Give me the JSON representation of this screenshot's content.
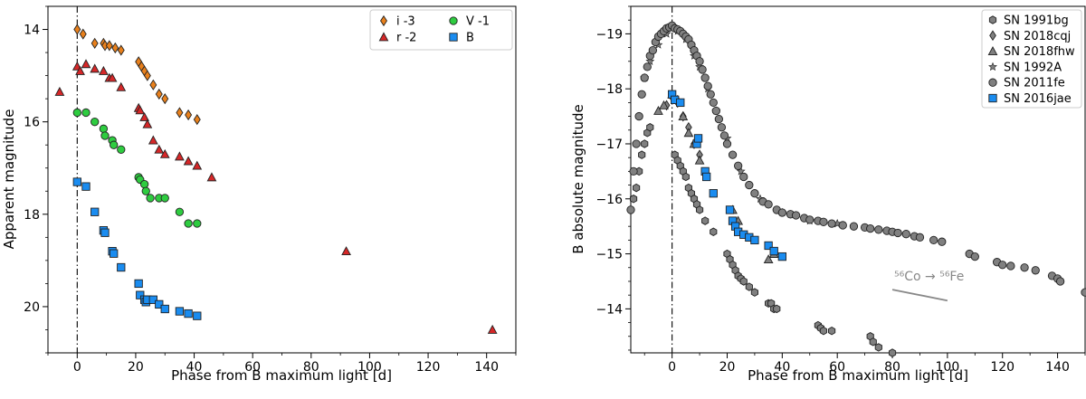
{
  "chart_data": [
    {
      "type": "scatter",
      "title": "",
      "xlabel": "Phase from B maximum light [d]",
      "ylabel": "Apparent magnitude",
      "xlim": [
        -10,
        150
      ],
      "ylim": [
        21.0,
        13.5
      ],
      "y_inverted": true,
      "grid": false,
      "legend_position": "top-right",
      "reference_line_x": 0,
      "x_ticks": [
        "0",
        "20",
        "40",
        "60",
        "80",
        "100",
        "120",
        "140"
      ],
      "x_tick_values": [
        0,
        20,
        40,
        60,
        80,
        100,
        120,
        140
      ],
      "y_ticks": [
        "14",
        "16",
        "18",
        "20"
      ],
      "y_tick_values": [
        14,
        16,
        18,
        20
      ],
      "series": [
        {
          "name": "i -3",
          "marker": "diamond",
          "color": "#e8801c",
          "x": [
            0,
            2,
            6,
            9,
            9.5,
            11,
            13,
            15,
            21,
            22,
            23,
            24,
            26,
            28,
            30,
            35,
            38,
            41
          ],
          "y": [
            14.0,
            14.1,
            14.3,
            14.3,
            14.35,
            14.35,
            14.4,
            14.45,
            14.7,
            14.8,
            14.9,
            15.0,
            15.2,
            15.4,
            15.5,
            15.8,
            15.85,
            15.95
          ]
        },
        {
          "name": "r -2",
          "marker": "triangle",
          "color": "#d62728",
          "x": [
            -6,
            0,
            1,
            3,
            6,
            9,
            11,
            12,
            15,
            21,
            21.5,
            23,
            24,
            26,
            28,
            30,
            35,
            38,
            41,
            46,
            92,
            142
          ],
          "y": [
            15.35,
            14.8,
            14.9,
            14.75,
            14.85,
            14.9,
            15.05,
            15.05,
            15.25,
            15.7,
            15.75,
            15.9,
            16.05,
            16.4,
            16.6,
            16.7,
            16.75,
            16.85,
            16.95,
            17.2,
            18.8,
            20.5
          ]
        },
        {
          "name": "V -1",
          "marker": "circle",
          "color": "#2ecc40",
          "x": [
            0,
            3,
            6,
            9,
            9.5,
            12,
            12.5,
            15,
            21,
            21.5,
            23,
            23.5,
            25,
            28,
            30,
            35,
            38,
            41
          ],
          "y": [
            15.8,
            15.8,
            16.0,
            16.15,
            16.3,
            16.4,
            16.5,
            16.6,
            17.2,
            17.25,
            17.35,
            17.5,
            17.65,
            17.65,
            17.65,
            17.95,
            18.2,
            18.2
          ]
        },
        {
          "name": "B",
          "marker": "square",
          "color": "#1a8cf0",
          "x": [
            0,
            3,
            6,
            9,
            9.5,
            12,
            12.5,
            15,
            21,
            21.5,
            23,
            23.5,
            24,
            26,
            28,
            30,
            35,
            38,
            41
          ],
          "y": [
            17.3,
            17.4,
            17.95,
            18.35,
            18.4,
            18.8,
            18.85,
            19.15,
            19.5,
            19.75,
            19.85,
            19.9,
            19.85,
            19.85,
            19.95,
            20.05,
            20.1,
            20.15,
            20.2
          ]
        }
      ]
    },
    {
      "type": "scatter",
      "title": "",
      "xlabel": "Phase from B maximum light [d]",
      "ylabel": "B absolute magnitude",
      "xlim": [
        -15,
        150
      ],
      "ylim": [
        -13.2,
        -19.5
      ],
      "y_inverted": true,
      "grid": false,
      "legend_position": "top-right",
      "reference_line_x": 0,
      "x_ticks": [
        "0",
        "20",
        "40",
        "60",
        "80",
        "100",
        "120",
        "140"
      ],
      "x_tick_values": [
        0,
        20,
        40,
        60,
        80,
        100,
        120,
        140
      ],
      "y_ticks": [
        "−19",
        "−18",
        "−17",
        "−16",
        "−15",
        "−14"
      ],
      "y_tick_values": [
        -19,
        -18,
        -17,
        -16,
        -15,
        -14
      ],
      "annotation": {
        "text": "⁵⁶Co → ⁵⁶Fe",
        "line_x": [
          80,
          100
        ],
        "line_y": [
          -14.35,
          -14.15
        ]
      },
      "series": [
        {
          "name": "SN 1991bg",
          "marker": "hexagon",
          "color": "#808080",
          "x": [
            -14,
            -13,
            -12,
            -11,
            -10,
            -9,
            -8,
            1,
            2,
            3,
            4,
            5,
            6,
            7,
            8,
            9,
            10,
            12,
            15,
            20,
            21,
            22,
            23,
            24,
            25,
            26,
            28,
            30,
            35,
            36,
            37,
            38,
            53,
            54,
            55,
            58,
            72,
            73,
            75,
            80
          ],
          "y": [
            -16.0,
            -16.2,
            -16.5,
            -16.8,
            -17.0,
            -17.2,
            -17.3,
            -16.8,
            -16.7,
            -16.6,
            -16.5,
            -16.4,
            -16.2,
            -16.1,
            -16.0,
            -15.9,
            -15.8,
            -15.6,
            -15.4,
            -15.0,
            -14.9,
            -14.8,
            -14.7,
            -14.6,
            -14.55,
            -14.5,
            -14.4,
            -14.3,
            -14.1,
            -14.1,
            -14.0,
            -14.0,
            -13.7,
            -13.65,
            -13.6,
            -13.6,
            -13.5,
            -13.4,
            -13.3,
            -13.2
          ]
        },
        {
          "name": "SN 2018cqj",
          "marker": "diamond",
          "color": "#808080",
          "x": [
            -2,
            0,
            2,
            4,
            6,
            8,
            10
          ],
          "y": [
            -17.7,
            -17.85,
            -17.75,
            -17.5,
            -17.3,
            -17.0,
            -16.8
          ]
        },
        {
          "name": "SN 2018fhw",
          "marker": "triangle",
          "color": "#808080",
          "x": [
            -5,
            -3,
            0,
            2,
            4,
            6,
            8,
            10,
            22,
            24,
            35,
            37
          ],
          "y": [
            -17.6,
            -17.7,
            -17.9,
            -17.8,
            -17.5,
            -17.2,
            -17.0,
            -16.7,
            -15.8,
            -15.6,
            -14.9,
            -15.0
          ]
        },
        {
          "name": "SN 1992A",
          "marker": "star",
          "color": "#808080",
          "x": [
            -10,
            -8,
            -5,
            -2,
            0,
            2,
            5,
            8,
            10,
            13,
            16,
            20,
            25,
            32,
            40,
            50,
            60
          ],
          "y": [
            -18.2,
            -18.5,
            -18.8,
            -19.0,
            -19.1,
            -19.05,
            -18.9,
            -18.6,
            -18.4,
            -18.0,
            -17.6,
            -17.1,
            -16.5,
            -16.0,
            -15.75,
            -15.6,
            -15.55
          ]
        },
        {
          "name": "SN 2011fe",
          "marker": "circle",
          "color": "#808080",
          "x": [
            -15,
            -14,
            -13,
            -12,
            -11,
            -10,
            -9,
            -8,
            -7,
            -6,
            -5,
            -4,
            -3,
            -2,
            -1,
            0,
            1,
            2,
            3,
            4,
            5,
            6,
            7,
            8,
            9,
            10,
            11,
            12,
            13,
            14,
            15,
            16,
            17,
            18,
            19,
            20,
            22,
            24,
            26,
            28,
            30,
            33,
            35,
            38,
            40,
            43,
            45,
            48,
            50,
            53,
            55,
            58,
            62,
            66,
            70,
            72,
            75,
            78,
            80,
            82,
            85,
            88,
            90,
            95,
            98,
            108,
            110,
            118,
            120,
            123,
            128,
            132,
            138,
            140,
            141,
            150
          ],
          "y": [
            -15.8,
            -16.5,
            -17.0,
            -17.5,
            -17.9,
            -18.2,
            -18.4,
            -18.6,
            -18.7,
            -18.85,
            -18.95,
            -19.0,
            -19.05,
            -19.1,
            -19.12,
            -19.15,
            -19.1,
            -19.08,
            -19.05,
            -19.0,
            -18.95,
            -18.9,
            -18.8,
            -18.7,
            -18.6,
            -18.5,
            -18.35,
            -18.2,
            -18.05,
            -17.9,
            -17.75,
            -17.6,
            -17.45,
            -17.3,
            -17.15,
            -17.0,
            -16.8,
            -16.6,
            -16.4,
            -16.25,
            -16.1,
            -15.95,
            -15.9,
            -15.8,
            -15.75,
            -15.72,
            -15.7,
            -15.65,
            -15.62,
            -15.6,
            -15.58,
            -15.55,
            -15.52,
            -15.5,
            -15.48,
            -15.46,
            -15.44,
            -15.42,
            -15.4,
            -15.38,
            -15.36,
            -15.32,
            -15.3,
            -15.25,
            -15.22,
            -15.0,
            -14.95,
            -14.85,
            -14.8,
            -14.78,
            -14.75,
            -14.7,
            -14.6,
            -14.55,
            -14.5,
            -14.3
          ]
        },
        {
          "name": "SN 2016jae",
          "marker": "square",
          "color": "#1a8cf0",
          "x": [
            0,
            1,
            3,
            9,
            9.5,
            12,
            12.5,
            15,
            21,
            22,
            23,
            24,
            26,
            28,
            30,
            35,
            37,
            40
          ],
          "y": [
            -17.9,
            -17.8,
            -17.75,
            -17.0,
            -17.1,
            -16.5,
            -16.4,
            -16.1,
            -15.8,
            -15.6,
            -15.5,
            -15.4,
            -15.35,
            -15.3,
            -15.25,
            -15.15,
            -15.05,
            -14.95
          ]
        }
      ]
    }
  ]
}
